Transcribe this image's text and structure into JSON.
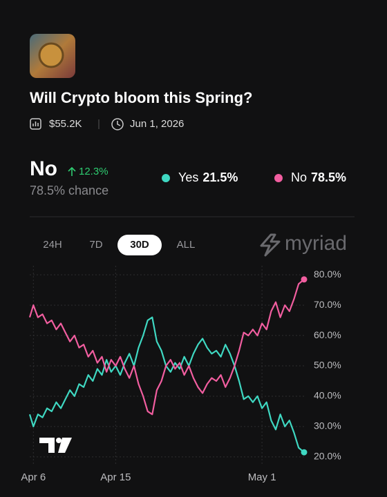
{
  "market": {
    "title": "Will Crypto bloom this Spring?",
    "volume": "$55.2K",
    "end_date": "Jun 1, 2026",
    "outcome": "No",
    "change": "12.3%",
    "chance": "78.5% chance",
    "legend": [
      {
        "name": "Yes",
        "value": "21.5%"
      },
      {
        "name": "No",
        "value": "78.5%"
      }
    ]
  },
  "tabs": [
    "24H",
    "7D",
    "30D",
    "ALL"
  ],
  "selected_tab": 2,
  "brand": "myriad",
  "chart_data": {
    "type": "line",
    "x": [
      -0.4,
      0,
      0.5,
      1,
      1.5,
      2,
      2.5,
      3,
      3.5,
      4,
      4.5,
      5,
      5.5,
      6,
      6.5,
      7,
      7.5,
      8,
      8.5,
      9,
      9.5,
      10,
      10.5,
      11,
      11.5,
      12,
      12.5,
      13,
      13.5,
      14,
      14.5,
      15,
      15.5,
      16,
      16.5,
      17,
      17.5,
      18,
      18.5,
      19,
      19.5,
      20,
      20.5,
      21,
      21.5,
      22,
      22.5,
      23,
      23.5,
      24,
      24.5,
      25,
      25.5,
      26,
      26.5,
      27,
      27.5,
      28,
      28.5,
      29,
      29.6
    ],
    "series": [
      {
        "name": "Yes",
        "color": "#3fd8c2",
        "values": [
          34,
          30,
          34,
          33,
          36,
          35,
          38,
          36,
          39,
          42,
          40,
          44,
          43,
          47,
          45,
          49,
          47,
          52,
          48,
          50,
          47,
          51,
          54,
          50,
          56,
          60,
          65,
          66,
          58,
          55,
          50,
          48,
          51,
          49,
          53,
          50,
          54,
          57,
          59,
          56,
          54,
          55,
          53,
          57,
          54,
          50,
          45,
          39,
          40,
          38,
          40,
          36,
          38,
          32,
          29,
          34,
          30,
          32,
          28,
          23,
          21.5
        ]
      },
      {
        "name": "No",
        "color": "#f25ea0",
        "values": [
          66,
          70,
          66,
          67,
          64,
          65,
          62,
          64,
          61,
          58,
          60,
          56,
          57,
          53,
          55,
          51,
          53,
          48,
          52,
          50,
          53,
          49,
          46,
          50,
          44,
          40,
          35,
          34,
          42,
          45,
          50,
          52,
          49,
          51,
          47,
          50,
          46,
          43,
          41,
          44,
          46,
          45,
          47,
          43,
          46,
          50,
          55,
          61,
          60,
          62,
          60,
          64,
          62,
          68,
          71,
          66,
          70,
          68,
          72,
          77,
          78.5
        ]
      }
    ],
    "xlim": [
      -0.4,
      29.6
    ],
    "xticks": [
      {
        "value": 0,
        "label": "Apr 6"
      },
      {
        "value": 9,
        "label": "Apr 15"
      },
      {
        "value": 25,
        "label": "May 1"
      }
    ],
    "ylim": [
      17,
      83
    ],
    "yticks": [
      {
        "value": 20,
        "label": "20.0%"
      },
      {
        "value": 30,
        "label": "30.0%"
      },
      {
        "value": 40,
        "label": "40.0%"
      },
      {
        "value": 50,
        "label": "50.0%"
      },
      {
        "value": 60,
        "label": "60.0%"
      },
      {
        "value": 70,
        "label": "70.0%"
      },
      {
        "value": 80,
        "label": "80.0%"
      }
    ],
    "grid": true
  }
}
